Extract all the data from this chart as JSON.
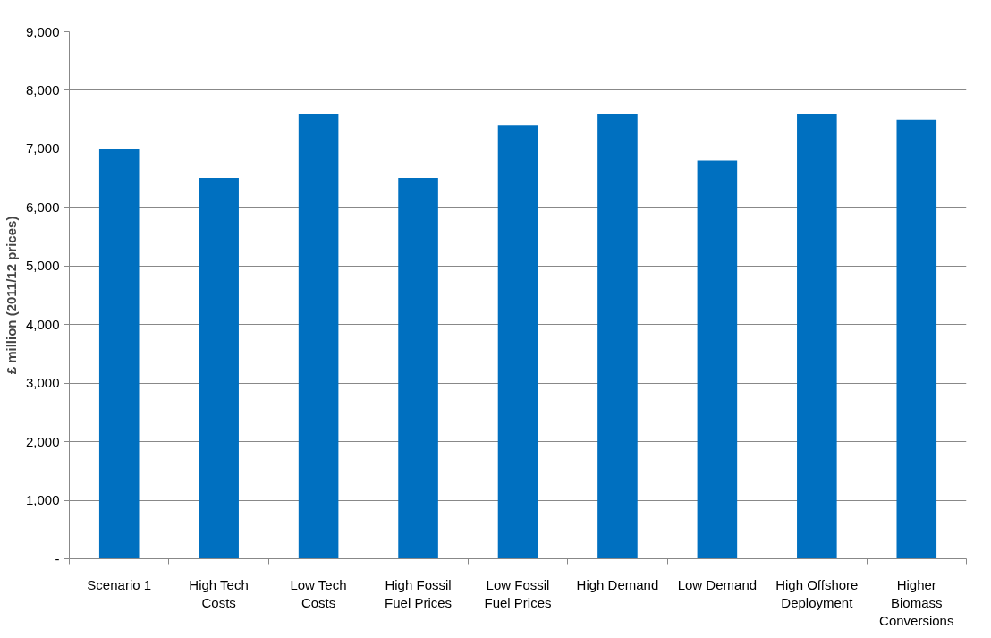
{
  "chart_data": {
    "type": "bar",
    "ylabel": "£ million (2011/12 prices)",
    "categories": [
      "Scenario 1",
      "High Tech Costs",
      "Low Tech Costs",
      "High Fossil Fuel Prices",
      "Low Fossil Fuel Prices",
      "High Demand",
      "Low Demand",
      "High Offshore Deployment",
      "Higher Biomass Conversions"
    ],
    "values": [
      7000,
      6500,
      7600,
      6500,
      7400,
      7600,
      6800,
      7600,
      7500
    ],
    "color": "#0070c0",
    "ylim": [
      0,
      9000
    ],
    "yticks": [
      {
        "value": 0,
        "label": "-"
      },
      {
        "value": 1000,
        "label": "1,000"
      },
      {
        "value": 2000,
        "label": "2,000"
      },
      {
        "value": 3000,
        "label": "3,000"
      },
      {
        "value": 4000,
        "label": "4,000"
      },
      {
        "value": 5000,
        "label": "5,000"
      },
      {
        "value": 6000,
        "label": "6,000"
      },
      {
        "value": 7000,
        "label": "7,000"
      },
      {
        "value": 8000,
        "label": "8,000"
      },
      {
        "value": 9000,
        "label": "9,000"
      }
    ],
    "grid": "y"
  }
}
